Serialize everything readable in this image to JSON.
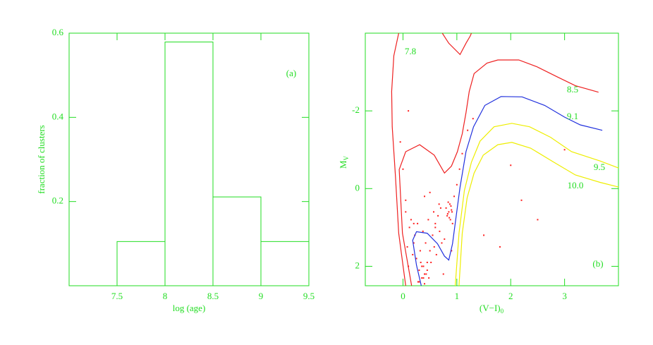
{
  "chart_data": [
    {
      "type": "histogram",
      "color": "#22dd22",
      "xlabel": "log (age)",
      "ylabel": "fraction of clusters",
      "annotation": "(a)",
      "bins": [
        7.5,
        8,
        8.5,
        9,
        9.5
      ],
      "values": [
        0.105,
        0.579,
        0.211,
        0.105
      ],
      "xlim": [
        7,
        9.5
      ],
      "ylim": [
        0,
        0.6
      ],
      "xticks": [
        7.5,
        8,
        8.5,
        9,
        9.5
      ],
      "yticks": [
        0.2,
        0.4,
        0.6
      ]
    },
    {
      "type": "scatter-line",
      "color": "#22dd22",
      "xlabel": "(V−I)",
      "xlabel_sub": "0",
      "ylabel": "M",
      "ylabel_sub": "V",
      "annotation": "(b)",
      "xlim": [
        -0.7,
        4
      ],
      "ylim": [
        2.5,
        -4
      ],
      "xticks": [
        0,
        1,
        2,
        3
      ],
      "yticks": [
        -2,
        0,
        2
      ],
      "points": {
        "color": "#ff2020",
        "x": [
          0.05,
          0.12,
          0.2,
          0.25,
          0.3,
          0.35,
          0.4,
          0.45,
          0.5,
          0.55,
          0.6,
          0.65,
          0.7,
          0.1,
          0.18,
          0.28,
          0.38,
          0.48,
          0.58,
          0.68,
          0.15,
          0.22,
          0.32,
          0.42,
          0.52,
          0.62,
          0.72,
          0.08,
          0.27,
          0.37,
          0.47,
          0.57,
          0.67,
          0.77,
          0.3,
          0.35,
          0.4,
          0.45,
          0.33,
          0.38,
          0.43,
          0.8,
          0.82,
          0.85,
          0.87,
          0.88,
          0.9,
          0.83,
          0.86,
          0.89,
          0.92,
          0.84,
          0.91,
          0.95,
          1.0,
          1.05,
          1.1,
          1.2,
          1.3,
          0.05,
          0.0,
          -0.05,
          0.1,
          0.6,
          0.75,
          0.9,
          1.5,
          2.0,
          2.5,
          3.0,
          1.8,
          2.2,
          0.4,
          0.5,
          0.2
        ],
        "y": [
          0.6,
          1.0,
          1.4,
          1.8,
          2.1,
          2.3,
          2.2,
          1.9,
          1.6,
          1.2,
          0.9,
          0.7,
          0.5,
          2.0,
          1.7,
          2.4,
          2.0,
          2.3,
          1.5,
          1.1,
          0.8,
          1.2,
          1.6,
          1.4,
          1.9,
          1.7,
          1.4,
          1.5,
          0.9,
          1.1,
          0.8,
          0.6,
          0.4,
          1.3,
          2.4,
          2.0,
          2.45,
          2.1,
          1.9,
          2.3,
          2.2,
          0.5,
          0.7,
          0.6,
          0.4,
          0.8,
          0.55,
          0.65,
          0.75,
          0.45,
          0.9,
          0.35,
          0.6,
          0.2,
          -0.1,
          -0.5,
          -0.9,
          -1.5,
          -1.8,
          0.3,
          -0.5,
          -1.2,
          -2.0,
          1.0,
          2.2,
          1.6,
          1.2,
          -0.6,
          0.8,
          -1.0,
          1.5,
          0.3,
          0.2,
          0.1,
          0.9
        ]
      },
      "series": [
        {
          "name": "7.8",
          "color": "#ee2020",
          "x": [
            0.05,
            -0.08,
            -0.14,
            -0.2,
            -0.21,
            -0.17,
            -0.08,
            null,
            0.73,
            0.85,
            1.06,
            1.17,
            1.25,
            1.27
          ],
          "y": [
            2.5,
            1.15,
            -0.31,
            -1.59,
            -2.5,
            -3.42,
            -4.0,
            null,
            -4.0,
            -3.74,
            -3.45,
            -3.74,
            -3.93,
            -4.0
          ]
        },
        {
          "name": "8.5",
          "color": "#ee2020",
          "x": [
            0.16,
            -0.01,
            -0.07,
            0.05,
            0.31,
            0.58,
            0.77,
            0.9,
            1.01,
            1.1,
            1.17,
            1.23,
            1.32,
            1.56,
            1.76,
            2.15,
            2.48,
            2.87,
            3.2,
            3.63
          ],
          "y": [
            2.5,
            1.15,
            -0.49,
            -0.95,
            -1.13,
            -0.86,
            -0.4,
            -0.58,
            -0.95,
            -1.41,
            -1.95,
            -2.5,
            -2.96,
            -3.23,
            -3.31,
            -3.31,
            -3.14,
            -2.87,
            -2.65,
            -2.48
          ]
        },
        {
          "name": "9.1",
          "color": "#2030dd",
          "x": [
            0.34,
            0.25,
            0.18,
            0.25,
            0.45,
            0.64,
            0.77,
            0.85,
            0.92,
            0.98,
            1.06,
            1.17,
            1.31,
            1.52,
            1.82,
            2.21,
            2.63,
            3.0,
            3.29,
            3.7
          ],
          "y": [
            2.5,
            1.97,
            1.33,
            1.11,
            1.15,
            1.42,
            1.74,
            1.84,
            1.42,
            0.79,
            -0.04,
            -0.95,
            -1.59,
            -2.14,
            -2.37,
            -2.36,
            -2.14,
            -1.84,
            -1.64,
            -1.5
          ]
        },
        {
          "name": "9.5",
          "color": "#eeee00",
          "x": [
            0.97,
            1.04,
            1.14,
            1.27,
            1.43,
            1.69,
            2.02,
            2.35,
            2.74,
            3.13,
            3.66,
            4.0
          ],
          "y": [
            2.5,
            1.15,
            0.05,
            -0.68,
            -1.22,
            -1.59,
            -1.68,
            -1.59,
            -1.32,
            -0.95,
            -0.71,
            -0.53
          ]
        },
        {
          "name": "10.0",
          "color": "#eeee00",
          "x": [
            1.04,
            1.1,
            1.19,
            1.32,
            1.49,
            1.76,
            2.02,
            2.37,
            2.8,
            3.2,
            3.66,
            4.0
          ],
          "y": [
            2.5,
            1.15,
            0.24,
            -0.4,
            -0.86,
            -1.13,
            -1.19,
            -1.04,
            -0.68,
            -0.35,
            -0.16,
            -0.04
          ]
        }
      ]
    }
  ]
}
